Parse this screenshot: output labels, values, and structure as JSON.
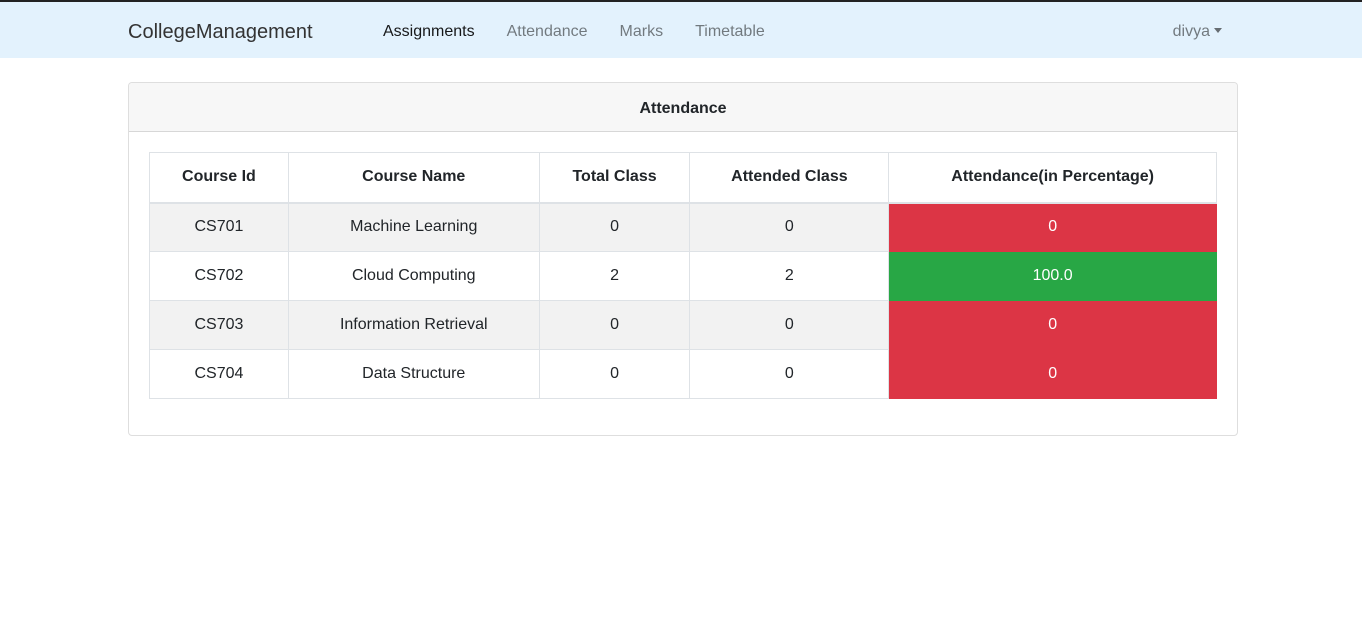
{
  "navbar": {
    "brand": "CollegeManagement",
    "links": [
      {
        "label": "Assignments",
        "active": true
      },
      {
        "label": "Attendance",
        "active": false
      },
      {
        "label": "Marks",
        "active": false
      },
      {
        "label": "Timetable",
        "active": false
      }
    ],
    "user": "divya"
  },
  "card": {
    "title": "Attendance",
    "columns": [
      "Course Id",
      "Course Name",
      "Total Class",
      "Attended Class",
      "Attendance(in Percentage)"
    ],
    "rows": [
      {
        "id": "CS701",
        "name": "Machine Learning",
        "total": "0",
        "attended": "0",
        "percent": "0",
        "status": "low"
      },
      {
        "id": "CS702",
        "name": "Cloud Computing",
        "total": "2",
        "attended": "2",
        "percent": "100.0",
        "status": "high"
      },
      {
        "id": "CS703",
        "name": "Information Retrieval",
        "total": "0",
        "attended": "0",
        "percent": "0",
        "status": "low"
      },
      {
        "id": "CS704",
        "name": "Data Structure",
        "total": "0",
        "attended": "0",
        "percent": "0",
        "status": "low"
      }
    ]
  },
  "colors": {
    "low": "#dc3545",
    "high": "#28a745",
    "navbar_bg": "#e3f2fd"
  }
}
